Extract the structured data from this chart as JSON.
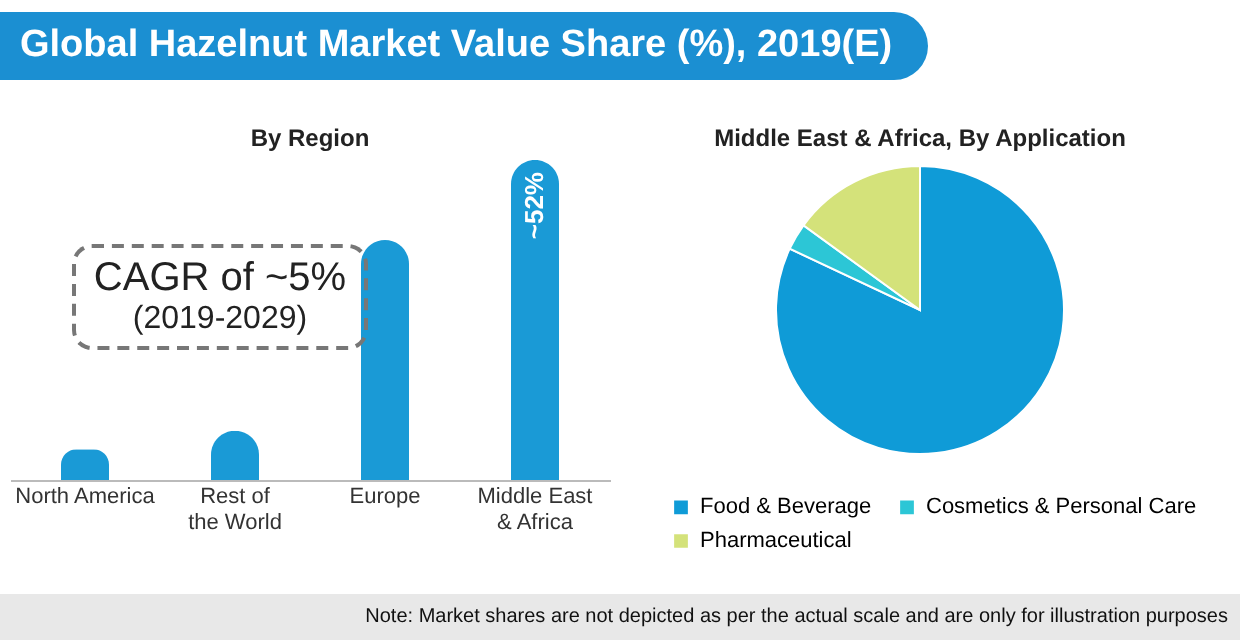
{
  "chart_data": [
    {
      "type": "bar",
      "title": "Global Hazelnut Market Value Share (%), 2019(E)",
      "subtitle": "By Region",
      "categories": [
        "North America",
        "Rest of the World",
        "Europe",
        "Middle East & Africa"
      ],
      "values": [
        5,
        8,
        39,
        52
      ],
      "value_labels": [
        null,
        null,
        null,
        "~52%"
      ],
      "color": "#1a9ad6",
      "annotations": [
        "CAGR of ~5%",
        "(2019-2029)"
      ]
    },
    {
      "type": "pie",
      "title": "Middle East & Africa, By Application",
      "categories": [
        "Food & Beverage",
        "Cosmetics & Personal Care",
        "Pharmaceutical"
      ],
      "values": [
        82,
        3,
        15
      ],
      "colors": [
        "#0f9bd7",
        "#2cc6d6",
        "#d4e27a"
      ],
      "legend": "bottom",
      "annotations": [
        "Note: Market shares are not depicted as per the actual scale and are only for illustration purposes"
      ]
    }
  ]
}
